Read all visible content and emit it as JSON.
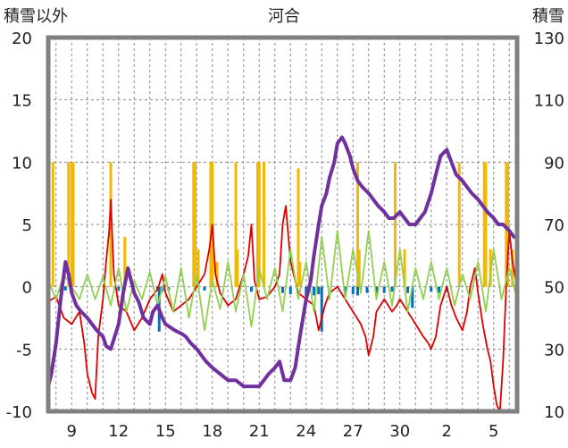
{
  "chart_data": {
    "type": "line",
    "title": "河合",
    "ylabel_left": "積雪以外",
    "ylabel_right": "積雪",
    "y_left": {
      "range": [
        -10,
        20
      ],
      "ticks": [
        "-10",
        "-5",
        "0",
        "5",
        "10",
        "15",
        "20"
      ]
    },
    "y_right": {
      "range": [
        10,
        130
      ],
      "ticks": [
        "10",
        "30",
        "50",
        "70",
        "90",
        "110",
        "130"
      ]
    },
    "x_ticks": [
      "9",
      "12",
      "15",
      "18",
      "21",
      "24",
      "27",
      "30",
      "2",
      "5"
    ],
    "x_tick_days": [
      1,
      4,
      7,
      10,
      13,
      16,
      19,
      22,
      25,
      28
    ],
    "x_range": [
      -0.5,
      29.5
    ],
    "grid": true,
    "colors": {
      "precip": "#f5b800",
      "temp": "#e00000",
      "sun": "#0070c0",
      "wind": "#92d050",
      "snow": "#7030a0",
      "frame": "#808080"
    },
    "series": [
      {
        "key": "precip",
        "axis": "left",
        "kind": "bars",
        "points": [
          [
            -0.2,
            10
          ],
          [
            0.8,
            10
          ],
          [
            1.0,
            10
          ],
          [
            1.1,
            10
          ],
          [
            3.5,
            10
          ],
          [
            4.4,
            4
          ],
          [
            8.8,
            10
          ],
          [
            8.9,
            10
          ],
          [
            9.1,
            3
          ],
          [
            9.9,
            10
          ],
          [
            10.0,
            10
          ],
          [
            10.3,
            2
          ],
          [
            11.5,
            10
          ],
          [
            11.6,
            3
          ],
          [
            12.9,
            10
          ],
          [
            13.0,
            10
          ],
          [
            13.3,
            10
          ],
          [
            15.5,
            9.5
          ],
          [
            15.6,
            2
          ],
          [
            19.3,
            10
          ],
          [
            19.4,
            3
          ],
          [
            21.7,
            10
          ],
          [
            22.3,
            3
          ],
          [
            25.8,
            10
          ],
          [
            27.4,
            10
          ],
          [
            27.5,
            10
          ],
          [
            27.8,
            3
          ],
          [
            28.8,
            10
          ],
          [
            28.9,
            10
          ],
          [
            29.2,
            3
          ]
        ]
      },
      {
        "key": "sun",
        "axis": "left",
        "kind": "bars",
        "points": [
          [
            0.3,
            -0.4
          ],
          [
            0.6,
            -0.3
          ],
          [
            4.0,
            -0.3
          ],
          [
            6.5,
            -0.3
          ],
          [
            6.6,
            -3.6
          ],
          [
            6.8,
            -0.4
          ],
          [
            7.2,
            -0.3
          ],
          [
            9.5,
            -0.3
          ],
          [
            12.5,
            -0.4
          ],
          [
            14.5,
            -0.5
          ],
          [
            15.0,
            -0.6
          ],
          [
            16.0,
            -0.8
          ],
          [
            16.5,
            -0.7
          ],
          [
            16.8,
            -0.6
          ],
          [
            17.0,
            -3.6
          ],
          [
            18.5,
            -0.5
          ],
          [
            19.0,
            -0.6
          ],
          [
            19.3,
            -0.7
          ],
          [
            19.9,
            -0.5
          ],
          [
            20.5,
            -0.6
          ],
          [
            21.0,
            -0.5
          ],
          [
            21.5,
            -0.4
          ],
          [
            22.5,
            -0.5
          ],
          [
            22.8,
            -1.7
          ],
          [
            24.0,
            -0.4
          ],
          [
            24.5,
            -0.5
          ],
          [
            25.0,
            -0.4
          ]
        ]
      },
      {
        "key": "temp",
        "axis": "left",
        "kind": "line",
        "points": [
          [
            -0.5,
            -1.2
          ],
          [
            0,
            -0.8
          ],
          [
            0.5,
            -2.5
          ],
          [
            1,
            -3
          ],
          [
            1.5,
            -2
          ],
          [
            1.8,
            -4.5
          ],
          [
            2,
            -7
          ],
          [
            2.3,
            -8.5
          ],
          [
            2.5,
            -9
          ],
          [
            2.7,
            -4
          ],
          [
            3,
            -1
          ],
          [
            3.2,
            2
          ],
          [
            3.4,
            4.5
          ],
          [
            3.5,
            7
          ],
          [
            3.7,
            1
          ],
          [
            4,
            -1.5
          ],
          [
            4.5,
            -2
          ],
          [
            5,
            -3.5
          ],
          [
            5.5,
            -2.5
          ],
          [
            6,
            -1
          ],
          [
            6.5,
            -0.2
          ],
          [
            6.8,
            1
          ],
          [
            7,
            -0.5
          ],
          [
            7.5,
            -2
          ],
          [
            8,
            -1.5
          ],
          [
            8.5,
            -1
          ],
          [
            9,
            0
          ],
          [
            9.5,
            1
          ],
          [
            9.8,
            3
          ],
          [
            10,
            5
          ],
          [
            10.2,
            1
          ],
          [
            10.5,
            -0.5
          ],
          [
            11,
            -1.5
          ],
          [
            11.5,
            -1
          ],
          [
            12,
            1
          ],
          [
            12.3,
            2.5
          ],
          [
            12.5,
            5
          ],
          [
            12.7,
            0.5
          ],
          [
            13,
            -1
          ],
          [
            13.5,
            -0.8
          ],
          [
            14,
            0
          ],
          [
            14.3,
            1
          ],
          [
            14.5,
            5
          ],
          [
            14.7,
            6.5
          ],
          [
            15,
            2
          ],
          [
            15.5,
            -0.5
          ],
          [
            16,
            -1
          ],
          [
            16.5,
            -1.5
          ],
          [
            16.8,
            -3.5
          ],
          [
            17.2,
            -1.5
          ],
          [
            17.5,
            -0.5
          ],
          [
            18,
            0
          ],
          [
            18.5,
            -1
          ],
          [
            19,
            -2
          ],
          [
            19.5,
            -3
          ],
          [
            19.8,
            -4
          ],
          [
            20,
            -5.5
          ],
          [
            20.3,
            -4
          ],
          [
            20.5,
            -2
          ],
          [
            21,
            -1
          ],
          [
            21.5,
            -2
          ],
          [
            21.8,
            -1.5
          ],
          [
            22,
            -1
          ],
          [
            22.5,
            -2
          ],
          [
            23,
            -3
          ],
          [
            23.5,
            -4
          ],
          [
            23.8,
            -4.5
          ],
          [
            24,
            -5
          ],
          [
            24.3,
            -4
          ],
          [
            24.6,
            -1.5
          ],
          [
            25,
            0
          ],
          [
            25.3,
            -1.5
          ],
          [
            25.6,
            -2.5
          ],
          [
            26,
            -3.5
          ],
          [
            26.3,
            -2
          ],
          [
            26.5,
            0
          ],
          [
            26.8,
            1.5
          ],
          [
            27,
            -0.5
          ],
          [
            27.3,
            -3
          ],
          [
            27.6,
            -5
          ],
          [
            27.8,
            -6
          ],
          [
            28,
            -8
          ],
          [
            28.2,
            -9.5
          ],
          [
            28.4,
            -10
          ],
          [
            28.6,
            -6
          ],
          [
            28.8,
            0
          ],
          [
            29,
            4.5
          ],
          [
            29.2,
            2
          ],
          [
            29.5,
            0
          ]
        ]
      },
      {
        "key": "wind",
        "axis": "left",
        "kind": "line",
        "points": [
          [
            -0.5,
            0.5
          ],
          [
            0,
            -1
          ],
          [
            0.5,
            1
          ],
          [
            1,
            0
          ],
          [
            1.5,
            -1
          ],
          [
            2,
            1
          ],
          [
            2.5,
            -1
          ],
          [
            3,
            0.8
          ],
          [
            3.5,
            -1.5
          ],
          [
            4,
            1.5
          ],
          [
            4.5,
            -2
          ],
          [
            5,
            0.5
          ],
          [
            5.5,
            -1
          ],
          [
            6,
            1.2
          ],
          [
            6.5,
            -1.5
          ],
          [
            7,
            0.8
          ],
          [
            7.5,
            -2
          ],
          [
            8,
            1.5
          ],
          [
            8.5,
            -2.5
          ],
          [
            9,
            1
          ],
          [
            9.5,
            -3.5
          ],
          [
            10,
            0.5
          ],
          [
            10.5,
            -1.8
          ],
          [
            11,
            2
          ],
          [
            11.5,
            -2
          ],
          [
            12,
            1
          ],
          [
            12.5,
            -3.2
          ],
          [
            13,
            1.5
          ],
          [
            13.5,
            -1
          ],
          [
            14,
            1.5
          ],
          [
            14.5,
            -2
          ],
          [
            15,
            3
          ],
          [
            15.5,
            -1
          ],
          [
            16,
            2
          ],
          [
            16.5,
            -2
          ],
          [
            17,
            4
          ],
          [
            17.5,
            -1
          ],
          [
            18,
            4.5
          ],
          [
            18.5,
            -1
          ],
          [
            19,
            3
          ],
          [
            19.5,
            -0.5
          ],
          [
            20,
            4.5
          ],
          [
            20.5,
            -1
          ],
          [
            21,
            2
          ],
          [
            21.5,
            -1.5
          ],
          [
            22,
            3
          ],
          [
            22.5,
            -2
          ],
          [
            23,
            1.5
          ],
          [
            23.5,
            -1
          ],
          [
            24,
            2
          ],
          [
            24.5,
            -1
          ],
          [
            25,
            1.5
          ],
          [
            25.5,
            -1.5
          ],
          [
            26,
            1
          ],
          [
            26.5,
            -1
          ],
          [
            27,
            2
          ],
          [
            27.5,
            -2
          ],
          [
            28,
            3
          ],
          [
            28.5,
            -1
          ],
          [
            29,
            1.5
          ],
          [
            29.5,
            -1
          ]
        ]
      },
      {
        "key": "snow",
        "axis": "right",
        "kind": "line",
        "points": [
          [
            -0.5,
            18
          ],
          [
            -0.3,
            22
          ],
          [
            0,
            32
          ],
          [
            0.3,
            46
          ],
          [
            0.6,
            58
          ],
          [
            0.8,
            54
          ],
          [
            1,
            48
          ],
          [
            1.3,
            44
          ],
          [
            1.6,
            42
          ],
          [
            2,
            40
          ],
          [
            2.3,
            38
          ],
          [
            2.6,
            36
          ],
          [
            3,
            34
          ],
          [
            3.2,
            31
          ],
          [
            3.5,
            30
          ],
          [
            4,
            38
          ],
          [
            4.3,
            48
          ],
          [
            4.6,
            56
          ],
          [
            4.8,
            52
          ],
          [
            5,
            48
          ],
          [
            5.3,
            45
          ],
          [
            5.6,
            40
          ],
          [
            6,
            38
          ],
          [
            6.2,
            42
          ],
          [
            6.5,
            44
          ],
          [
            6.8,
            40
          ],
          [
            7,
            38
          ],
          [
            7.3,
            37
          ],
          [
            7.6,
            36
          ],
          [
            8,
            35
          ],
          [
            8.3,
            34
          ],
          [
            8.6,
            32
          ],
          [
            9,
            30
          ],
          [
            9.3,
            28
          ],
          [
            9.6,
            26
          ],
          [
            10,
            24
          ],
          [
            10.5,
            22
          ],
          [
            11,
            20
          ],
          [
            11.5,
            20
          ],
          [
            12,
            18
          ],
          [
            12.5,
            18
          ],
          [
            13,
            18
          ],
          [
            13.3,
            20
          ],
          [
            13.6,
            22
          ],
          [
            14,
            24
          ],
          [
            14.3,
            26
          ],
          [
            14.6,
            20
          ],
          [
            15,
            20
          ],
          [
            15.3,
            24
          ],
          [
            15.6,
            34
          ],
          [
            15.8,
            40
          ],
          [
            16,
            46
          ],
          [
            16.3,
            52
          ],
          [
            16.5,
            60
          ],
          [
            16.8,
            70
          ],
          [
            17,
            76
          ],
          [
            17.3,
            80
          ],
          [
            17.5,
            85
          ],
          [
            17.8,
            90
          ],
          [
            18,
            96
          ],
          [
            18.3,
            98
          ],
          [
            18.5,
            96
          ],
          [
            18.8,
            92
          ],
          [
            19,
            88
          ],
          [
            19.3,
            84
          ],
          [
            19.6,
            82
          ],
          [
            20,
            80
          ],
          [
            20.3,
            78
          ],
          [
            20.6,
            76
          ],
          [
            21,
            74
          ],
          [
            21.3,
            72
          ],
          [
            21.6,
            72
          ],
          [
            22,
            74
          ],
          [
            22.3,
            72
          ],
          [
            22.6,
            70
          ],
          [
            23,
            70
          ],
          [
            23.3,
            72
          ],
          [
            23.6,
            74
          ],
          [
            24,
            80
          ],
          [
            24.3,
            86
          ],
          [
            24.6,
            92
          ],
          [
            25,
            94
          ],
          [
            25.3,
            90
          ],
          [
            25.6,
            86
          ],
          [
            26,
            84
          ],
          [
            26.3,
            82
          ],
          [
            26.6,
            80
          ],
          [
            27,
            78
          ],
          [
            27.3,
            76
          ],
          [
            27.6,
            74
          ],
          [
            28,
            72
          ],
          [
            28.3,
            70
          ],
          [
            28.6,
            70
          ],
          [
            29,
            68
          ],
          [
            29.3,
            66
          ],
          [
            29.5,
            66
          ]
        ]
      }
    ]
  }
}
